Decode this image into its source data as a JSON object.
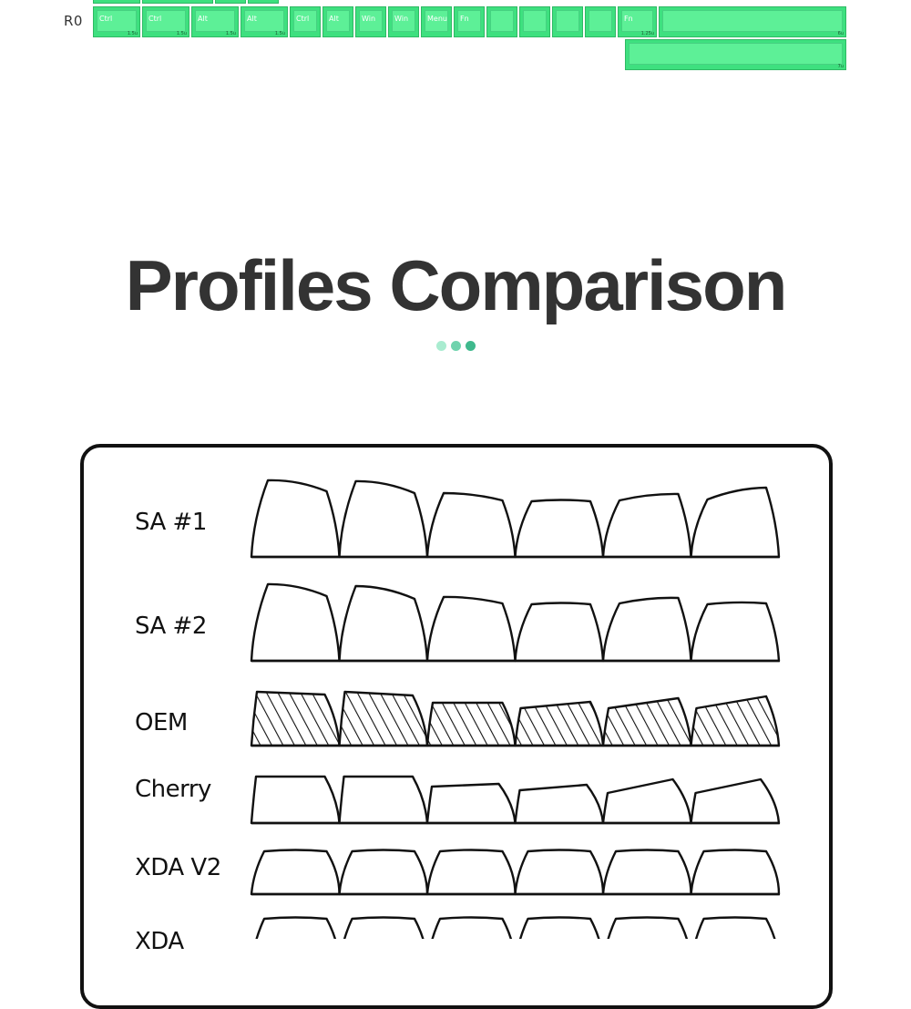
{
  "keyboard": {
    "row_label": "R0",
    "keys": [
      {
        "legend": "Ctrl",
        "size": "1.5u"
      },
      {
        "legend": "Ctrl",
        "size": "1.5u"
      },
      {
        "legend": "Alt",
        "size": "1.5u"
      },
      {
        "legend": "Alt",
        "size": "1.5u"
      },
      {
        "legend": "Ctrl",
        "size": ""
      },
      {
        "legend": "Alt",
        "size": ""
      },
      {
        "legend": "Win",
        "size": ""
      },
      {
        "legend": "Win",
        "size": ""
      },
      {
        "legend": "Menu",
        "size": ""
      },
      {
        "legend": "Fn",
        "size": ""
      },
      {
        "legend": "",
        "size": ""
      },
      {
        "legend": "",
        "size": ""
      },
      {
        "legend": "",
        "size": ""
      },
      {
        "legend": "",
        "size": ""
      },
      {
        "legend": "Fn",
        "size": "1.25u"
      },
      {
        "legend": "",
        "size": "6u"
      },
      {
        "legend": "",
        "size": "7u"
      }
    ],
    "key_color": "#3ee07f"
  },
  "heading": {
    "title": "Profiles Comparison",
    "dot_colors": [
      "#a9ecd0",
      "#6fd3ad",
      "#3fb98d"
    ]
  },
  "comparison": {
    "profiles": [
      {
        "name": "SA #1",
        "style": "sculpted-tall"
      },
      {
        "name": "SA #2",
        "style": "sculpted-tall"
      },
      {
        "name": "OEM",
        "style": "hatched"
      },
      {
        "name": "Cherry",
        "style": "sculpted-low"
      },
      {
        "name": "XDA V2",
        "style": "uniform"
      },
      {
        "name": "XDA",
        "style": "uniform"
      }
    ]
  }
}
